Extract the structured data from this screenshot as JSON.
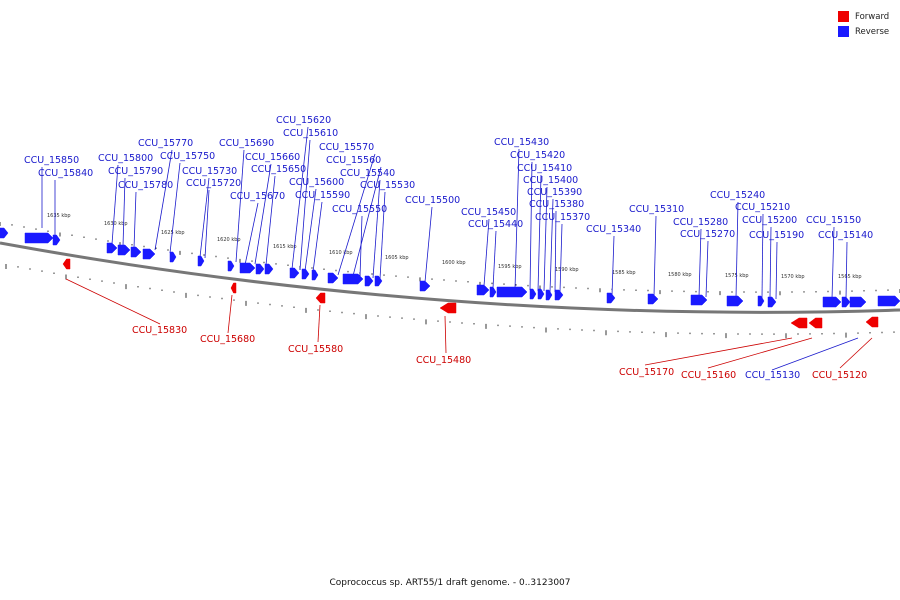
{
  "legend": [
    {
      "label": "Forward",
      "color": "#ee0000"
    },
    {
      "label": "Reverse",
      "color": "#1a1aff"
    }
  ],
  "caption": "Coprococcus sp. ART55/1 draft genome. - 0..3123007",
  "scale_labels": [
    "1635 kbp",
    "1630 kbp",
    "1625 kbp",
    "1620 kbp",
    "1615 kbp",
    "1610 kbp",
    "1605 kbp",
    "1600 kbp",
    "1595 kbp",
    "1590 kbp",
    "1585 kbp",
    "1580 kbp",
    "1575 kbp",
    "1570 kbp",
    "1565 kbp"
  ],
  "reverse_labels": [
    "CCU_15850",
    "CCU_15840",
    "CCU_15800",
    "CCU_15790",
    "CCU_15780",
    "CCU_15770",
    "CCU_15750",
    "CCU_15730",
    "CCU_15720",
    "CCU_15690",
    "CCU_15660",
    "CCU_15650",
    "CCU_15670",
    "CCU_15620",
    "CCU_15610",
    "CCU_15600",
    "CCU_15590",
    "CCU_15570",
    "CCU_15560",
    "CCU_15550",
    "CCU_15540",
    "CCU_15530",
    "CCU_15500",
    "CCU_15450",
    "CCU_15440",
    "CCU_15430",
    "CCU_15420",
    "CCU_15410",
    "CCU_15400",
    "CCU_15390",
    "CCU_15380",
    "CCU_15370",
    "CCU_15340",
    "CCU_15310",
    "CCU_15280",
    "CCU_15270",
    "CCU_15240",
    "CCU_15210",
    "CCU_15200",
    "CCU_15190",
    "CCU_15150",
    "CCU_15140",
    "CCU_15130"
  ],
  "forward_labels": [
    "CCU_15830",
    "CCU_15680",
    "CCU_15580",
    "CCU_15480",
    "CCU_15170",
    "CCU_15160",
    "CCU_15120"
  ],
  "colors": {
    "forward": "#ee0000",
    "reverse": "#1a1aff",
    "backbone": "#777777",
    "label_reverse": "#1a1acc",
    "label_forward": "#cc0000"
  }
}
